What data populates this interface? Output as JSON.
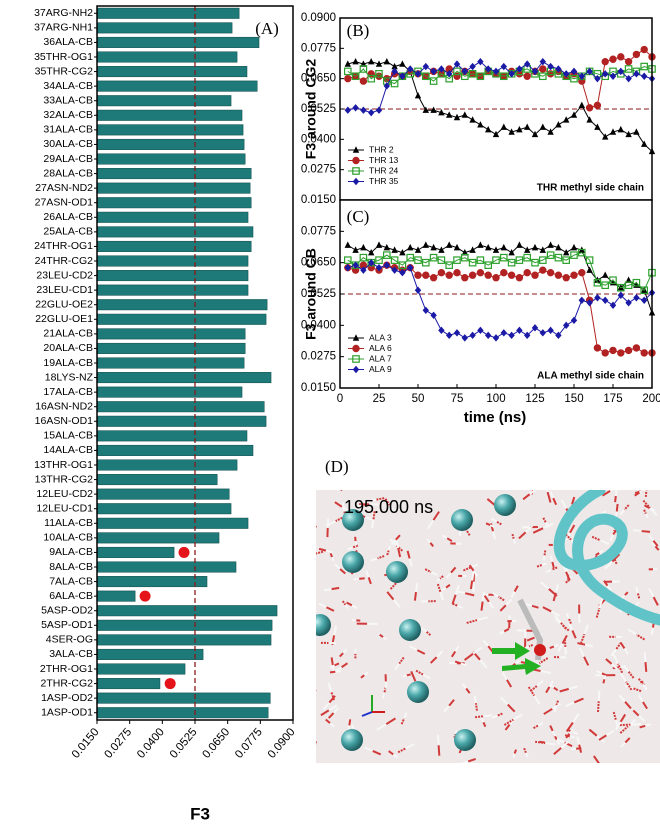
{
  "chart_data": [
    {
      "type": "bar",
      "orientation": "horizontal",
      "panel_label": "(A)",
      "xlabel": "F3",
      "color": "#1d7a78",
      "marker_color": "#e5141b",
      "categories": [
        "37ARG-NH2",
        "37ARG-NH1",
        "36ALA-CB",
        "35THR-OG1",
        "35THR-CG2",
        "34ALA-CB",
        "33ALA-CB",
        "32ALA-CB",
        "31ALA-CB",
        "30ALA-CB",
        "29ALA-CB",
        "28ALA-CB",
        "27ASN-ND2",
        "27ASN-OD1",
        "26ALA-CB",
        "25ALA-CB",
        "24THR-OG1",
        "24THR-CG2",
        "23LEU-CD2",
        "23LEU-CD1",
        "22GLU-OE2",
        "22GLU-OE1",
        "21ALA-CB",
        "20ALA-CB",
        "19ALA-CB",
        "18LYS-NZ",
        "17ALA-CB",
        "16ASN-ND2",
        "16ASN-OD1",
        "15ALA-CB",
        "14ALA-CB",
        "13THR-OG1",
        "13THR-CG2",
        "12LEU-CD2",
        "12LEU-CD1",
        "11ALA-CB",
        "10ALA-CB",
        "9ALA-CB",
        "8ALA-CB",
        "7ALA-CB",
        "6ALA-CB",
        "5ASP-OD2",
        "5ASP-OD1",
        "4SER-OG",
        "3ALA-CB",
        "2THR-OG1",
        "2THR-CG2",
        "1ASP-OD2",
        "1ASP-OD1"
      ],
      "values": [
        0.0694,
        0.0667,
        0.077,
        0.0686,
        0.0724,
        0.0763,
        0.0663,
        0.0705,
        0.0709,
        0.0713,
        0.0717,
        0.074,
        0.0736,
        0.074,
        0.0728,
        0.0747,
        0.074,
        0.0728,
        0.0728,
        0.0728,
        0.0801,
        0.0797,
        0.0717,
        0.0717,
        0.0713,
        0.0816,
        0.0705,
        0.079,
        0.0797,
        0.0724,
        0.0747,
        0.0686,
        0.061,
        0.0656,
        0.0663,
        0.0728,
        0.0617,
        0.0445,
        0.0682,
        0.0571,
        0.0296,
        0.0839,
        0.082,
        0.0816,
        0.0556,
        0.0487,
        0.0391,
        0.0813,
        0.0805
      ],
      "marker_values": [
        null,
        null,
        null,
        null,
        null,
        null,
        null,
        null,
        null,
        null,
        null,
        null,
        null,
        null,
        null,
        null,
        null,
        null,
        null,
        null,
        null,
        null,
        null,
        null,
        null,
        null,
        null,
        null,
        null,
        null,
        null,
        null,
        null,
        null,
        null,
        null,
        null,
        0.0483,
        null,
        null,
        0.0334,
        null,
        null,
        null,
        null,
        null,
        0.043,
        null,
        null
      ],
      "xlim": [
        0.015,
        0.09
      ],
      "xticks": [
        {
          "value": 0.015,
          "label": "0.0150"
        },
        {
          "value": 0.0275,
          "label": "0.0275"
        },
        {
          "value": 0.04,
          "label": "0.0400"
        },
        {
          "value": 0.0525,
          "label": "0.0525"
        },
        {
          "value": 0.065,
          "label": "0.0650"
        },
        {
          "value": 0.0775,
          "label": "0.0775"
        },
        {
          "value": 0.09,
          "label": "0.0900"
        }
      ],
      "ref_line": 0.0525,
      "ref_color": "#8b1a1a"
    },
    {
      "type": "line",
      "panel_label": "(B)",
      "ylabel": "F3 around CG2",
      "annotation": "THR methyl side chain",
      "legend": "lower left",
      "x": [
        5,
        10,
        15,
        20,
        25,
        30,
        35,
        40,
        45,
        50,
        55,
        60,
        65,
        70,
        75,
        80,
        85,
        90,
        95,
        100,
        105,
        110,
        115,
        120,
        125,
        130,
        135,
        140,
        145,
        150,
        155,
        160,
        165,
        170,
        175,
        180,
        185,
        190,
        195,
        200
      ],
      "series": [
        {
          "name": "THR 2",
          "color": "#000000",
          "marker": "triangle",
          "values": [
            0.071,
            0.072,
            0.071,
            0.072,
            0.071,
            0.072,
            0.07,
            0.071,
            0.068,
            0.058,
            0.052,
            0.052,
            0.051,
            0.05,
            0.049,
            0.05,
            0.048,
            0.046,
            0.044,
            0.042,
            0.045,
            0.043,
            0.044,
            0.045,
            0.042,
            0.045,
            0.043,
            0.046,
            0.048,
            0.05,
            0.054,
            0.048,
            0.045,
            0.041,
            0.043,
            0.044,
            0.042,
            0.043,
            0.038,
            0.035
          ]
        },
        {
          "name": "THR 13",
          "color": "#b22222",
          "marker": "circle",
          "values": [
            0.065,
            0.066,
            0.064,
            0.067,
            0.066,
            0.065,
            0.067,
            0.066,
            0.068,
            0.067,
            0.066,
            0.068,
            0.067,
            0.069,
            0.066,
            0.068,
            0.067,
            0.066,
            0.068,
            0.067,
            0.066,
            0.068,
            0.067,
            0.066,
            0.068,
            0.069,
            0.067,
            0.068,
            0.066,
            0.067,
            0.064,
            0.053,
            0.054,
            0.072,
            0.073,
            0.074,
            0.072,
            0.075,
            0.077,
            0.074
          ]
        },
        {
          "name": "THR 24",
          "color": "#2ca02c",
          "marker": "square",
          "values": [
            0.068,
            0.066,
            0.069,
            0.065,
            0.067,
            0.064,
            0.063,
            0.066,
            0.067,
            0.068,
            0.066,
            0.064,
            0.067,
            0.065,
            0.068,
            0.066,
            0.067,
            0.066,
            0.068,
            0.067,
            0.066,
            0.067,
            0.068,
            0.069,
            0.067,
            0.066,
            0.068,
            0.067,
            0.066,
            0.065,
            0.066,
            0.068,
            0.067,
            0.066,
            0.068,
            0.067,
            0.069,
            0.068,
            0.07,
            0.069
          ]
        },
        {
          "name": "THR 35",
          "color": "#1a1aa6",
          "marker": "diamond",
          "values": [
            0.052,
            0.053,
            0.052,
            0.051,
            0.052,
            0.062,
            0.068,
            0.066,
            0.069,
            0.067,
            0.07,
            0.068,
            0.069,
            0.067,
            0.071,
            0.068,
            0.07,
            0.072,
            0.069,
            0.068,
            0.07,
            0.067,
            0.069,
            0.071,
            0.068,
            0.072,
            0.07,
            0.069,
            0.067,
            0.068,
            0.066,
            0.068,
            0.065,
            0.067,
            0.066,
            0.068,
            0.065,
            0.067,
            0.066,
            0.065
          ]
        }
      ],
      "xlim": [
        0,
        200
      ],
      "ylim": [
        0.015,
        0.09
      ],
      "yticks": [
        {
          "value": 0.015,
          "label": "0.0150"
        },
        {
          "value": 0.0275,
          "label": "0.0275"
        },
        {
          "value": 0.04,
          "label": "0.0400"
        },
        {
          "value": 0.0525,
          "label": "0.0525"
        },
        {
          "value": 0.065,
          "label": "0.0650"
        },
        {
          "value": 0.0775,
          "label": "0.0775"
        },
        {
          "value": 0.09,
          "label": "0.0900"
        }
      ],
      "ref_line": 0.0525,
      "ref_color": "#8b1a1a"
    },
    {
      "type": "line",
      "panel_label": "(C)",
      "ylabel": "F3 around CB",
      "xlabel": "time (ns)",
      "annotation": "ALA methyl side chain",
      "legend": "lower left",
      "x": [
        5,
        10,
        15,
        20,
        25,
        30,
        35,
        40,
        45,
        50,
        55,
        60,
        65,
        70,
        75,
        80,
        85,
        90,
        95,
        100,
        105,
        110,
        115,
        120,
        125,
        130,
        135,
        140,
        145,
        150,
        155,
        160,
        165,
        170,
        175,
        180,
        185,
        190,
        195,
        200
      ],
      "series": [
        {
          "name": "ALA 3",
          "color": "#000000",
          "marker": "triangle",
          "values": [
            0.072,
            0.07,
            0.071,
            0.069,
            0.072,
            0.071,
            0.07,
            0.069,
            0.071,
            0.07,
            0.072,
            0.071,
            0.07,
            0.072,
            0.071,
            0.069,
            0.07,
            0.072,
            0.071,
            0.07,
            0.071,
            0.069,
            0.072,
            0.07,
            0.071,
            0.07,
            0.072,
            0.071,
            0.069,
            0.071,
            0.07,
            0.062,
            0.058,
            0.06,
            0.057,
            0.055,
            0.058,
            0.056,
            0.054,
            0.045
          ]
        },
        {
          "name": "ALA 6",
          "color": "#b22222",
          "marker": "circle",
          "values": [
            0.063,
            0.062,
            0.064,
            0.063,
            0.062,
            0.064,
            0.063,
            0.062,
            0.063,
            0.06,
            0.06,
            0.059,
            0.061,
            0.06,
            0.061,
            0.059,
            0.06,
            0.061,
            0.06,
            0.059,
            0.061,
            0.06,
            0.059,
            0.061,
            0.06,
            0.062,
            0.061,
            0.06,
            0.059,
            0.06,
            0.061,
            0.05,
            0.031,
            0.029,
            0.03,
            0.029,
            0.03,
            0.031,
            0.029,
            0.029
          ]
        },
        {
          "name": "ALA 7",
          "color": "#2ca02c",
          "marker": "square",
          "values": [
            0.066,
            0.064,
            0.067,
            0.065,
            0.066,
            0.068,
            0.066,
            0.064,
            0.067,
            0.066,
            0.065,
            0.067,
            0.066,
            0.064,
            0.066,
            0.067,
            0.065,
            0.066,
            0.064,
            0.066,
            0.067,
            0.065,
            0.066,
            0.067,
            0.065,
            0.066,
            0.068,
            0.067,
            0.066,
            0.068,
            0.069,
            0.066,
            0.057,
            0.056,
            0.058,
            0.055,
            0.056,
            0.057,
            0.054,
            0.061
          ]
        },
        {
          "name": "ALA 9",
          "color": "#1a1aa6",
          "marker": "diamond",
          "values": [
            0.063,
            0.064,
            0.062,
            0.065,
            0.063,
            0.064,
            0.062,
            0.061,
            0.063,
            0.054,
            0.046,
            0.044,
            0.038,
            0.036,
            0.037,
            0.035,
            0.036,
            0.038,
            0.036,
            0.035,
            0.037,
            0.036,
            0.038,
            0.036,
            0.039,
            0.037,
            0.038,
            0.036,
            0.04,
            0.042,
            0.05,
            0.049,
            0.051,
            0.05,
            0.048,
            0.052,
            0.049,
            0.051,
            0.05,
            0.053
          ]
        }
      ],
      "xlim": [
        0,
        200
      ],
      "ylim": [
        0.015,
        0.09
      ],
      "xticks": [
        0,
        25,
        50,
        75,
        100,
        125,
        150,
        175,
        200
      ],
      "yticks": [
        {
          "value": 0.015,
          "label": "0.0150"
        },
        {
          "value": 0.0275,
          "label": "0.0275"
        },
        {
          "value": 0.04,
          "label": "0.0400"
        },
        {
          "value": 0.0525,
          "label": "0.0525"
        },
        {
          "value": 0.065,
          "label": "0.0650"
        },
        {
          "value": 0.0775,
          "label": "0.0775"
        }
      ],
      "ref_line": 0.0525,
      "ref_color": "#8b1a1a"
    }
  ],
  "snapshot": {
    "panel_label": "(D)",
    "caption": "195.000 ns"
  }
}
